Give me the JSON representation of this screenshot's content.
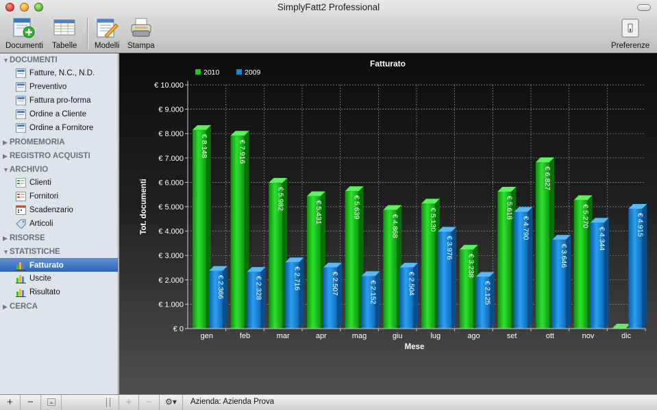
{
  "window": {
    "title": "SimplyFatt2 Professional"
  },
  "toolbar": {
    "documenti": "Documenti",
    "tabelle": "Tabelle",
    "modelli": "Modelli",
    "stampa": "Stampa",
    "preferenze": "Preferenze"
  },
  "sidebar": {
    "documenti": {
      "header": "DOCUMENTI",
      "items": [
        "Fatture, N.C., N.D.",
        "Preventivo",
        "Fattura pro-forma",
        "Ordine a Cliente",
        "Ordine a Fornitore"
      ]
    },
    "promemoria": {
      "header": "PROMEMORIA"
    },
    "registro": {
      "header": "REGISTRO ACQUISTI"
    },
    "archivio": {
      "header": "ARCHIVIO",
      "items": [
        "Clienti",
        "Fornitori",
        "Scadenzario",
        "Articoli"
      ]
    },
    "risorse": {
      "header": "RISORSE"
    },
    "statistiche": {
      "header": "STATISTICHE",
      "items": [
        "Fatturato",
        "Uscite",
        "Risultato"
      ]
    },
    "cerca": {
      "header": "CERCA"
    }
  },
  "bottombar": {
    "add": "+",
    "remove": "−",
    "add2": "+",
    "remove2": "−",
    "gear": "⚙▾",
    "status": "Azienda: Azienda Prova"
  },
  "colors": {
    "series_2010": "#18c418",
    "series_2009": "#1a86d8",
    "selected": "#3a70c0"
  },
  "chart_data": {
    "type": "bar",
    "title": "Fatturato",
    "xlabel": "Mese",
    "ylabel": "Tot. documenti",
    "categories": [
      "gen",
      "feb",
      "mar",
      "apr",
      "mag",
      "giu",
      "lug",
      "ago",
      "set",
      "ott",
      "nov",
      "dic"
    ],
    "series": [
      {
        "name": "2010",
        "values": [
          8148,
          7916,
          5982,
          5431,
          5639,
          4868,
          5130,
          3238,
          5618,
          6827,
          5270,
          0
        ],
        "labels": [
          "€ 8.148",
          "€ 7.916",
          "€ 5.982",
          "€ 5.431",
          "€ 5.639",
          "€ 4.868",
          "€ 5.130",
          "€ 3.238",
          "€ 5.618",
          "€ 6.827",
          "€ 5.270",
          ""
        ]
      },
      {
        "name": "2009",
        "values": [
          2366,
          2328,
          2716,
          2507,
          2152,
          2504,
          3976,
          2125,
          4790,
          3646,
          4344,
          4915
        ],
        "labels": [
          "€ 2.366",
          "€ 2.328",
          "€ 2.716",
          "€ 2.507",
          "€ 2.152",
          "€ 2.504",
          "€ 3.976",
          "€ 2.125",
          "€ 4.790",
          "€ 3.646",
          "€ 4.344",
          "€ 4.915"
        ]
      }
    ],
    "yticks": [
      "€ 0",
      "€ 1.000",
      "€ 2.000",
      "€ 3.000",
      "€ 4.000",
      "€ 5.000",
      "€ 6.000",
      "€ 7.000",
      "€ 8.000",
      "€ 9.000",
      "€ 10.000"
    ],
    "ylim": [
      0,
      10000
    ],
    "grid": true,
    "legend": "top-left"
  }
}
